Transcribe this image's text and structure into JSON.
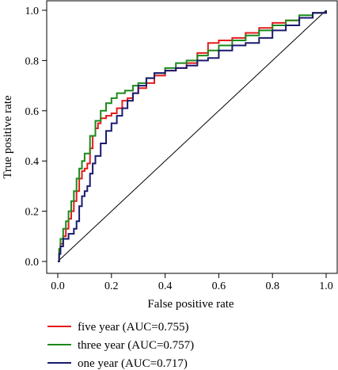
{
  "chart_data": {
    "type": "line",
    "title": "",
    "xlabel": "False positive rate",
    "ylabel": "True positive rate",
    "xlim": [
      0,
      1
    ],
    "ylim": [
      0,
      1
    ],
    "x_ticks": [
      "0.0",
      "0.2",
      "0.4",
      "0.6",
      "0.8",
      "1.0"
    ],
    "y_ticks": [
      "0.0",
      "0.2",
      "0.4",
      "0.6",
      "0.8",
      "1.0"
    ],
    "grid": false,
    "legend_position": "bottom",
    "diagonal_reference": true,
    "series": [
      {
        "name": "five year (AUC=0.755)",
        "color": "#e41a1c",
        "points": [
          [
            0,
            0
          ],
          [
            0.005,
            0.04
          ],
          [
            0.01,
            0.07
          ],
          [
            0.02,
            0.1
          ],
          [
            0.03,
            0.13
          ],
          [
            0.04,
            0.17
          ],
          [
            0.05,
            0.2
          ],
          [
            0.06,
            0.24
          ],
          [
            0.07,
            0.28
          ],
          [
            0.08,
            0.33
          ],
          [
            0.09,
            0.36
          ],
          [
            0.1,
            0.37
          ],
          [
            0.11,
            0.39
          ],
          [
            0.12,
            0.45
          ],
          [
            0.13,
            0.5
          ],
          [
            0.14,
            0.53
          ],
          [
            0.15,
            0.55
          ],
          [
            0.16,
            0.57
          ],
          [
            0.18,
            0.58
          ],
          [
            0.2,
            0.59
          ],
          [
            0.22,
            0.61
          ],
          [
            0.24,
            0.64
          ],
          [
            0.26,
            0.65
          ],
          [
            0.28,
            0.67
          ],
          [
            0.3,
            0.69
          ],
          [
            0.33,
            0.71
          ],
          [
            0.36,
            0.74
          ],
          [
            0.4,
            0.76
          ],
          [
            0.44,
            0.77
          ],
          [
            0.48,
            0.79
          ],
          [
            0.52,
            0.83
          ],
          [
            0.56,
            0.87
          ],
          [
            0.6,
            0.88
          ],
          [
            0.65,
            0.89
          ],
          [
            0.7,
            0.91
          ],
          [
            0.75,
            0.93
          ],
          [
            0.8,
            0.95
          ],
          [
            0.85,
            0.96
          ],
          [
            0.9,
            0.97
          ],
          [
            0.95,
            0.99
          ],
          [
            1,
            1
          ]
        ]
      },
      {
        "name": "three year (AUC=0.757)",
        "color": "#1a8a1a",
        "points": [
          [
            0,
            0
          ],
          [
            0.005,
            0.05
          ],
          [
            0.01,
            0.09
          ],
          [
            0.02,
            0.13
          ],
          [
            0.03,
            0.16
          ],
          [
            0.04,
            0.2
          ],
          [
            0.05,
            0.24
          ],
          [
            0.06,
            0.28
          ],
          [
            0.07,
            0.33
          ],
          [
            0.08,
            0.37
          ],
          [
            0.09,
            0.4
          ],
          [
            0.1,
            0.43
          ],
          [
            0.12,
            0.5
          ],
          [
            0.14,
            0.56
          ],
          [
            0.16,
            0.6
          ],
          [
            0.18,
            0.63
          ],
          [
            0.2,
            0.65
          ],
          [
            0.22,
            0.67
          ],
          [
            0.25,
            0.68
          ],
          [
            0.28,
            0.7
          ],
          [
            0.3,
            0.71
          ],
          [
            0.33,
            0.73
          ],
          [
            0.36,
            0.75
          ],
          [
            0.4,
            0.77
          ],
          [
            0.44,
            0.79
          ],
          [
            0.48,
            0.8
          ],
          [
            0.52,
            0.82
          ],
          [
            0.56,
            0.84
          ],
          [
            0.6,
            0.86
          ],
          [
            0.65,
            0.88
          ],
          [
            0.7,
            0.9
          ],
          [
            0.75,
            0.92
          ],
          [
            0.8,
            0.94
          ],
          [
            0.85,
            0.96
          ],
          [
            0.9,
            0.98
          ],
          [
            0.95,
            0.99
          ],
          [
            1,
            1
          ]
        ]
      },
      {
        "name": "one year (AUC=0.717)",
        "color": "#1a1a6e",
        "points": [
          [
            0,
            0
          ],
          [
            0.005,
            0.03
          ],
          [
            0.01,
            0.06
          ],
          [
            0.02,
            0.09
          ],
          [
            0.04,
            0.11
          ],
          [
            0.06,
            0.13
          ],
          [
            0.07,
            0.16
          ],
          [
            0.08,
            0.22
          ],
          [
            0.09,
            0.26
          ],
          [
            0.1,
            0.28
          ],
          [
            0.11,
            0.3
          ],
          [
            0.12,
            0.35
          ],
          [
            0.13,
            0.39
          ],
          [
            0.14,
            0.42
          ],
          [
            0.16,
            0.47
          ],
          [
            0.18,
            0.52
          ],
          [
            0.2,
            0.55
          ],
          [
            0.22,
            0.58
          ],
          [
            0.24,
            0.61
          ],
          [
            0.26,
            0.64
          ],
          [
            0.28,
            0.67
          ],
          [
            0.3,
            0.7
          ],
          [
            0.33,
            0.73
          ],
          [
            0.36,
            0.75
          ],
          [
            0.4,
            0.76
          ],
          [
            0.44,
            0.77
          ],
          [
            0.48,
            0.78
          ],
          [
            0.52,
            0.8
          ],
          [
            0.56,
            0.81
          ],
          [
            0.6,
            0.84
          ],
          [
            0.65,
            0.86
          ],
          [
            0.7,
            0.87
          ],
          [
            0.75,
            0.89
          ],
          [
            0.8,
            0.92
          ],
          [
            0.85,
            0.94
          ],
          [
            0.9,
            0.97
          ],
          [
            0.95,
            0.99
          ],
          [
            1,
            1
          ]
        ]
      }
    ]
  }
}
